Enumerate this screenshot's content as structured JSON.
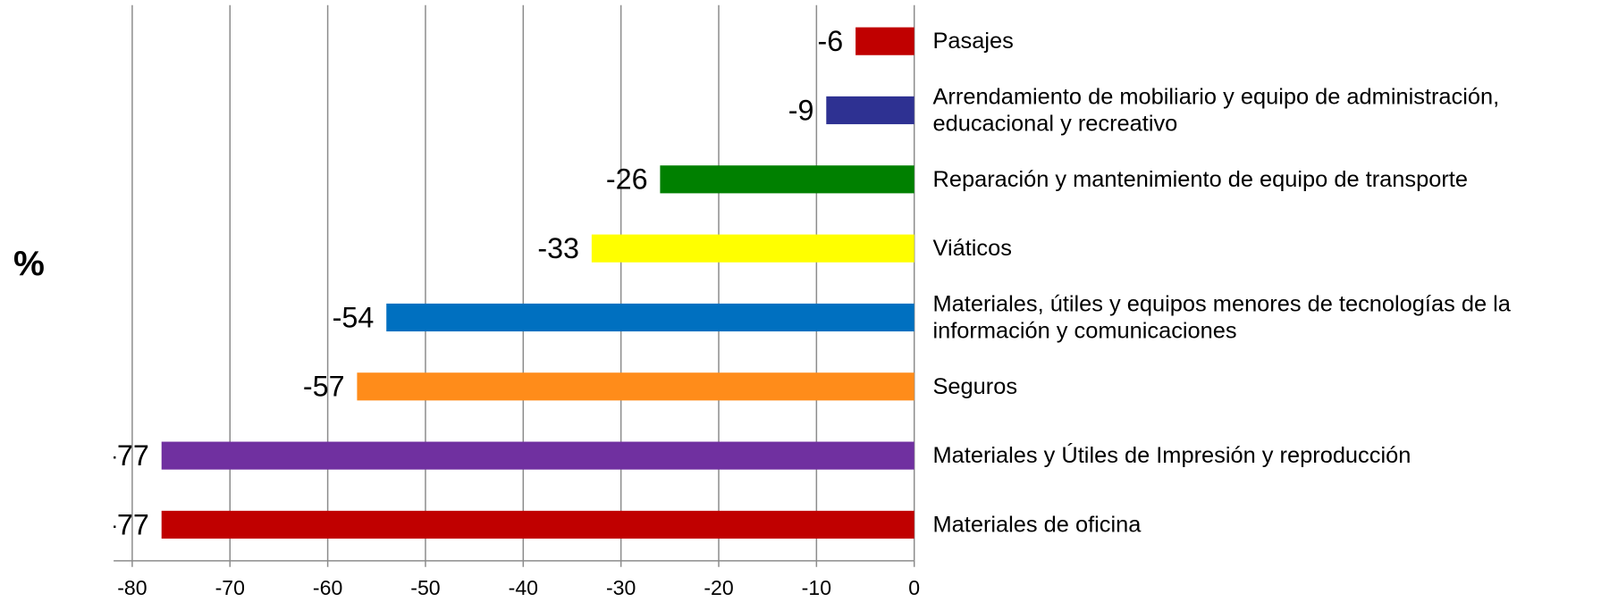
{
  "chart_data": {
    "type": "bar",
    "orientation": "horizontal",
    "y_label": "%",
    "categories": [
      "Pasajes",
      "Arrendamiento de mobiliario y equipo de administración, educacional y recreativo",
      "Reparación y mantenimiento de equipo de transporte",
      "Viáticos",
      "Materiales, útiles y equipos menores de tecnologías de la información y comunicaciones",
      "Seguros",
      "Materiales y Útiles de Impresión y reproducción",
      "Materiales de oficina"
    ],
    "values": [
      -6,
      -9,
      -26,
      -33,
      -54,
      -57,
      -77,
      -77
    ],
    "colors": [
      "#c00000",
      "#2e3192",
      "#008000",
      "#ffff00",
      "#0070c0",
      "#ff8c1a",
      "#7030a0",
      "#c00000"
    ],
    "xlim": [
      -80,
      0
    ],
    "xticks": [
      -80,
      -70,
      -60,
      -50,
      -40,
      -30,
      -20,
      -10,
      0
    ],
    "grid": true
  }
}
